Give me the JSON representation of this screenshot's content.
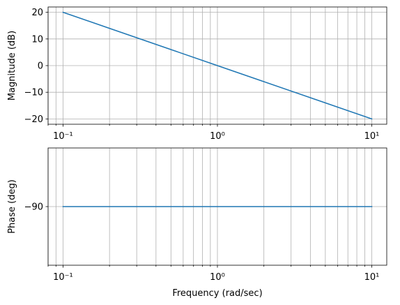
{
  "chart_data": [
    {
      "type": "line",
      "panel": "magnitude",
      "xlabel": "",
      "ylabel": "Magnitude (dB)",
      "xscale": "log",
      "xlim": [
        0.08,
        12.5
      ],
      "ylim": [
        -22,
        22
      ],
      "yticks": [
        20,
        10,
        0,
        -10,
        -20
      ],
      "ytick_labels": [
        "20",
        "10",
        "0",
        "−10",
        "−20"
      ],
      "xticks": [
        0.1,
        1,
        10
      ],
      "xtick_labels": [
        "10⁻¹",
        "10⁰",
        "10¹"
      ],
      "grid": true,
      "series": [
        {
          "x": [
            0.1,
            0.2,
            0.5,
            1,
            2,
            5,
            10
          ],
          "values": [
            20,
            13.98,
            6.02,
            0,
            -6.02,
            -13.98,
            -20
          ]
        }
      ]
    },
    {
      "type": "line",
      "panel": "phase",
      "xlabel": "Frequency (rad/sec)",
      "ylabel": "Phase (deg)",
      "xscale": "log",
      "xlim": [
        0.08,
        12.5
      ],
      "ylim": [
        -112.5,
        -67.5
      ],
      "yticks": [
        -90
      ],
      "ytick_labels": [
        "−90"
      ],
      "xticks": [
        0.1,
        1,
        10
      ],
      "xtick_labels": [
        "10⁻¹",
        "10⁰",
        "10¹"
      ],
      "grid": true,
      "series": [
        {
          "x": [
            0.1,
            1,
            10
          ],
          "values": [
            -90,
            -90,
            -90
          ]
        }
      ]
    }
  ],
  "colors": {
    "line": "#1f77b4",
    "grid": "#b0b0b0",
    "axes": "#000000"
  }
}
